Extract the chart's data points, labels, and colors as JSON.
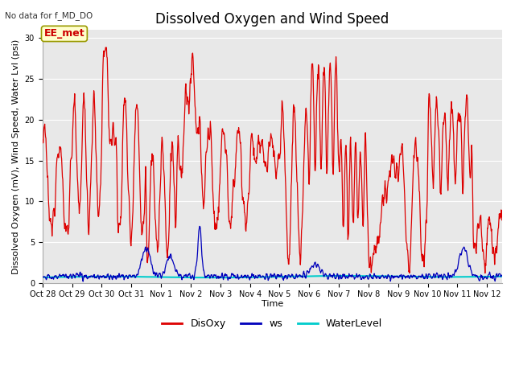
{
  "title": "Dissolved Oxygen and Wind Speed",
  "subtitle": "No data for f_MD_DO",
  "xlabel": "Time",
  "ylabel": "Dissolved Oxygen (mV), Wind Speed, Water Lvl (psi)",
  "annotation": "EE_met",
  "ylim": [
    0,
    31
  ],
  "yticks": [
    0,
    5,
    10,
    15,
    20,
    25,
    30
  ],
  "xtick_labels": [
    "Oct 28",
    "Oct 29",
    "Oct 30",
    "Oct 31",
    "Nov 1",
    "Nov 2",
    "Nov 3",
    "Nov 4",
    "Nov 5",
    "Nov 6",
    "Nov 7",
    "Nov 8",
    "Nov 9",
    "Nov 10",
    "Nov 11",
    "Nov 12"
  ],
  "disoxy_color": "#dd0000",
  "ws_color": "#0000bb",
  "waterlevel_color": "#00cccc",
  "figure_bg": "#ffffff",
  "plot_bg_color": "#e8e8e8",
  "grid_color": "#ffffff",
  "legend_labels": [
    "DisOxy",
    "ws",
    "WaterLevel"
  ],
  "title_fontsize": 12,
  "label_fontsize": 8,
  "tick_fontsize": 7,
  "annotation_fontsize": 9
}
